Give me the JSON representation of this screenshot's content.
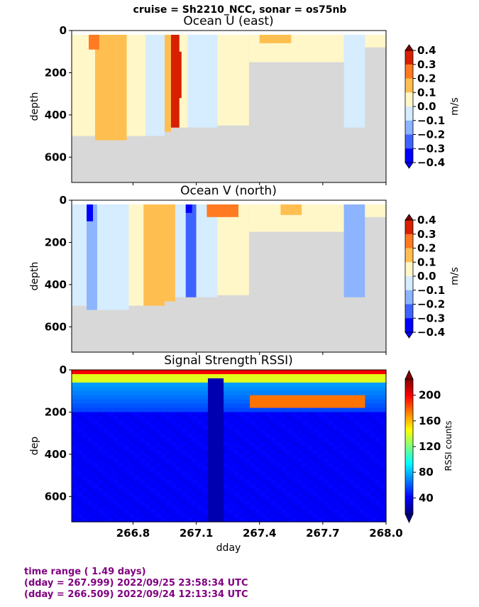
{
  "suptitle": "cruise = Sh2210_NCC,  sonar = os75nb",
  "colors": {
    "footer_text": "#800080",
    "no_data": "#d8d8d8",
    "velocity_scale": [
      "#0000ff",
      "#3f63ff",
      "#8cb4ff",
      "#d6ecff",
      "#fff7c8",
      "#ffbf50",
      "#ff7a20",
      "#d72000",
      "#800000"
    ],
    "rssi_scale": "jet"
  },
  "footer": {
    "line1": "time range ( 1.49 days)",
    "line2": "(dday = 267.999) 2022/09/25 23:58:34 UTC",
    "line3": "(dday = 266.509) 2022/09/24 12:13:34 UTC"
  },
  "chart_data": [
    {
      "type": "heatmap",
      "title": "Ocean U (east)",
      "ylabel": "depth",
      "xlim": [
        266.509,
        268.0
      ],
      "ylim": [
        720,
        0
      ],
      "yticks": [
        "0",
        "200",
        "400",
        "600"
      ],
      "colorbar": {
        "label": "m/s",
        "range": [
          -0.4,
          0.4
        ],
        "ticks": [
          "0.4",
          "0.3",
          "0.2",
          "0.1",
          "0.0",
          "−0.1",
          "−0.2",
          "−0.3",
          "−0.4"
        ]
      },
      "bands": [
        {
          "x": [
            266.51,
            266.62
          ],
          "value": 0.0,
          "bottom": 500
        },
        {
          "x": [
            266.62,
            266.72
          ],
          "value": 0.12,
          "bottom": 520
        },
        {
          "x": [
            266.72,
            266.77
          ],
          "value": 0.12,
          "bottom": 520
        },
        {
          "x": [
            266.77,
            266.86
          ],
          "value": 0.03,
          "bottom": 500
        },
        {
          "x": [
            266.86,
            266.95
          ],
          "value": -0.05,
          "bottom": 500
        },
        {
          "x": [
            266.95,
            266.98
          ],
          "value": 0.15,
          "bottom": 480
        },
        {
          "x": [
            266.98,
            267.02
          ],
          "value": 0.3,
          "bottom": 460
        },
        {
          "x": [
            267.02,
            267.06
          ],
          "value": 0.05,
          "bottom": 460
        },
        {
          "x": [
            267.06,
            267.2
          ],
          "value": -0.06,
          "bottom": 460
        },
        {
          "x": [
            267.2,
            267.35
          ],
          "value": 0.02,
          "bottom": 450
        },
        {
          "x": [
            267.35,
            267.8
          ],
          "value": 0.0,
          "bottom": 150
        },
        {
          "x": [
            267.8,
            267.9
          ],
          "value": -0.05,
          "bottom": 460
        },
        {
          "x": [
            267.9,
            268.0
          ],
          "value": 0.0,
          "bottom": 80
        }
      ],
      "surface_patches": [
        {
          "x": [
            266.59,
            266.64
          ],
          "value": 0.28,
          "top": 20,
          "bottom": 90
        },
        {
          "x": [
            267.0,
            267.03
          ],
          "value": 0.38,
          "top": 100,
          "bottom": 320
        },
        {
          "x": [
            267.4,
            267.55
          ],
          "value": 0.15,
          "top": 20,
          "bottom": 60
        }
      ]
    },
    {
      "type": "heatmap",
      "title": "Ocean V (north)",
      "ylabel": "depth",
      "xlim": [
        266.509,
        268.0
      ],
      "ylim": [
        720,
        0
      ],
      "yticks": [
        "0",
        "200",
        "400",
        "600"
      ],
      "colorbar": {
        "label": "m/s",
        "range": [
          -0.4,
          0.4
        ],
        "ticks": [
          "0.4",
          "0.3",
          "0.2",
          "0.1",
          "0.0",
          "−0.1",
          "−0.2",
          "−0.3",
          "−0.4"
        ]
      },
      "bands": [
        {
          "x": [
            266.51,
            266.58
          ],
          "value": -0.08,
          "bottom": 500
        },
        {
          "x": [
            266.58,
            266.63
          ],
          "value": -0.18,
          "bottom": 520
        },
        {
          "x": [
            266.63,
            266.78
          ],
          "value": -0.06,
          "bottom": 520
        },
        {
          "x": [
            266.78,
            266.85
          ],
          "value": 0.03,
          "bottom": 500
        },
        {
          "x": [
            266.85,
            266.95
          ],
          "value": 0.12,
          "bottom": 500
        },
        {
          "x": [
            266.95,
            267.0
          ],
          "value": 0.16,
          "bottom": 480
        },
        {
          "x": [
            267.0,
            267.05
          ],
          "value": -0.05,
          "bottom": 460
        },
        {
          "x": [
            267.05,
            267.1
          ],
          "value": -0.22,
          "bottom": 460
        },
        {
          "x": [
            267.1,
            267.2
          ],
          "value": -0.05,
          "bottom": 460
        },
        {
          "x": [
            267.2,
            267.35
          ],
          "value": 0.03,
          "bottom": 450
        },
        {
          "x": [
            267.35,
            267.8
          ],
          "value": 0.0,
          "bottom": 150
        },
        {
          "x": [
            267.8,
            267.9
          ],
          "value": -0.12,
          "bottom": 460
        },
        {
          "x": [
            267.9,
            268.0
          ],
          "value": 0.0,
          "bottom": 80
        }
      ],
      "surface_patches": [
        {
          "x": [
            266.58,
            266.61
          ],
          "value": -0.38,
          "top": 20,
          "bottom": 100
        },
        {
          "x": [
            267.05,
            267.08
          ],
          "value": -0.35,
          "top": 20,
          "bottom": 60
        },
        {
          "x": [
            267.5,
            267.6
          ],
          "value": 0.18,
          "top": 20,
          "bottom": 70
        },
        {
          "x": [
            267.15,
            267.3
          ],
          "value": 0.2,
          "top": 20,
          "bottom": 80
        }
      ]
    },
    {
      "type": "heatmap",
      "title": "Signal Strength RSSI)",
      "ylabel": "dep",
      "xlabel": "dday",
      "xlim": [
        266.509,
        268.0
      ],
      "ylim": [
        720,
        0
      ],
      "yticks": [
        "0",
        "200",
        "400",
        "600"
      ],
      "xticks": [
        266.8,
        267.1,
        267.4,
        267.7,
        268.0
      ],
      "xticklabels": [
        "266.8",
        "267.1",
        "267.4",
        "267.7",
        "268.0"
      ],
      "colorbar": {
        "label": "RSSI counts",
        "range": [
          15,
          225
        ],
        "ticks": [
          "200",
          "160",
          "120",
          "80",
          "40"
        ],
        "tick_values": [
          200,
          160,
          120,
          80,
          40
        ]
      },
      "profile": {
        "surface": 200,
        "near_surface": 140,
        "upper": 75,
        "deep": 40
      },
      "features": [
        {
          "x": [
            267.16,
            267.22
          ],
          "kind": "dark_column",
          "value": 25
        },
        {
          "x": [
            267.35,
            267.9
          ],
          "kind": "layer",
          "value": 175,
          "depth": 150
        }
      ]
    }
  ]
}
